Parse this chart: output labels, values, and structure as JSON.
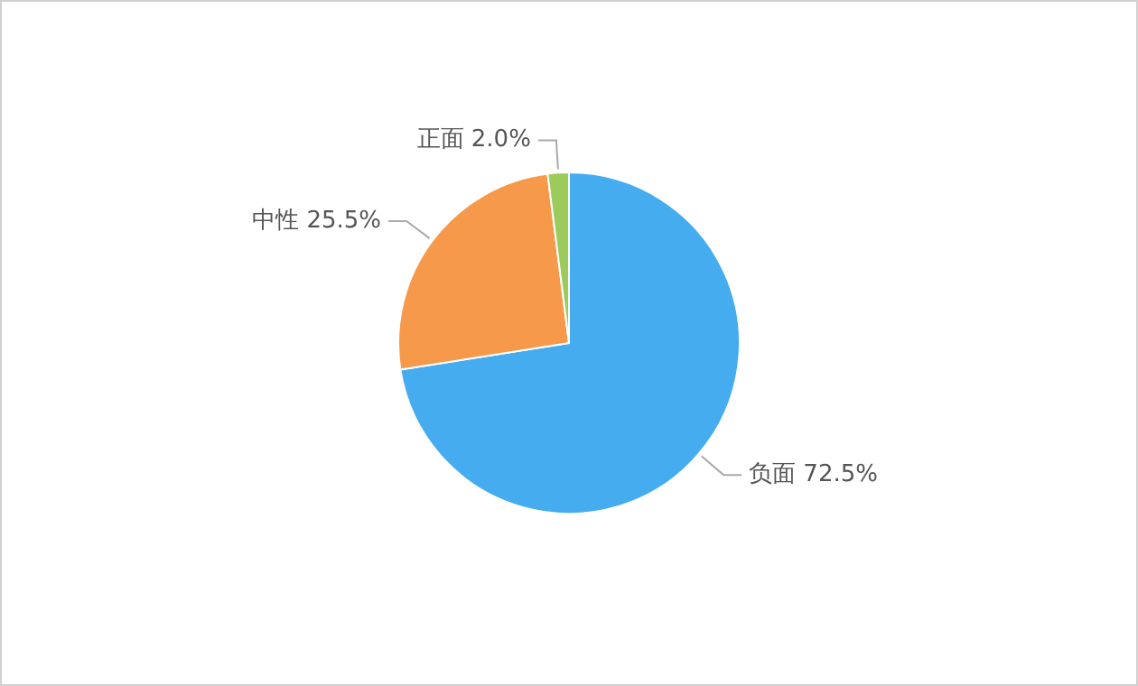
{
  "chart_data": {
    "type": "pie",
    "categories": [
      "负面",
      "中性",
      "正面"
    ],
    "values": [
      72.5,
      25.5,
      2.0
    ],
    "value_labels": [
      "72.5%",
      "25.5%",
      "2.0%"
    ],
    "colors": [
      "#45acf0",
      "#f7994b",
      "#9cca5d"
    ],
    "legend": false
  }
}
